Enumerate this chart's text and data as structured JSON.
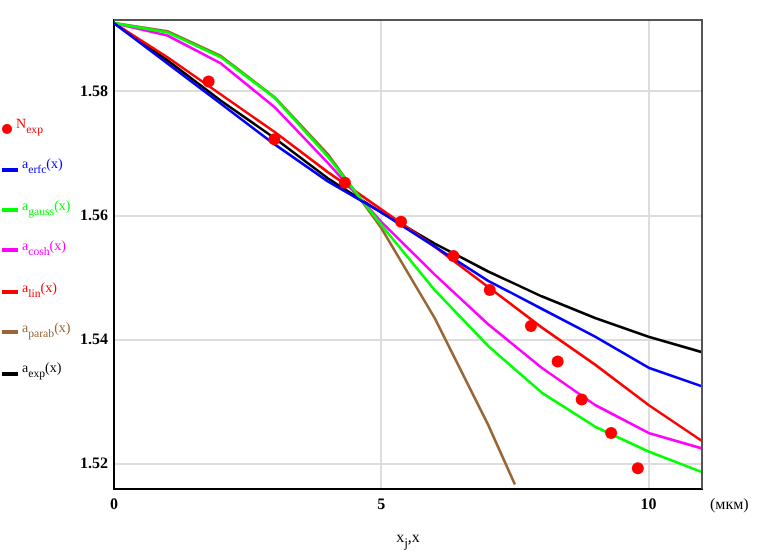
{
  "chart_data": {
    "type": "line",
    "xlabel": "x$_{j}$,x",
    "annotations": [
      "(мкм)"
    ],
    "xlim": [
      0,
      11
    ],
    "ylim": [
      1.516,
      1.5915
    ],
    "xticks": [
      0,
      5,
      10
    ],
    "yticks": [
      1.52,
      1.54,
      1.56,
      1.58
    ],
    "grid": true,
    "legend": "left",
    "line_style": "solid",
    "series": [
      {
        "name": "N$_{exp}$",
        "type": "scatter",
        "marker": "circle",
        "color": "#ff0000",
        "x": [
          1.77,
          3.0,
          4.32,
          5.37,
          6.35,
          7.03,
          7.8,
          8.3,
          8.75,
          9.3,
          9.8
        ],
        "values": [
          1.5816,
          1.5723,
          1.5653,
          1.559,
          1.5535,
          1.548,
          1.5422,
          1.5365,
          1.5304,
          1.525,
          1.5193
        ]
      },
      {
        "name": "a$_{erfc}$(x)",
        "color": "#0000ff",
        "x": [
          0,
          1,
          2,
          3,
          4,
          5,
          6,
          7,
          8,
          9,
          10,
          11
        ],
        "values": [
          1.591,
          1.5845,
          1.578,
          1.5715,
          1.5655,
          1.5605,
          1.555,
          1.5495,
          1.545,
          1.5405,
          1.5355,
          1.5325
        ]
      },
      {
        "name": "a$_{gauss}$(x)",
        "color": "#00ff00",
        "x": [
          0,
          1,
          2,
          3,
          4,
          5,
          6,
          7,
          8,
          9,
          10,
          11
        ],
        "values": [
          1.591,
          1.5895,
          1.5855,
          1.579,
          1.5695,
          1.5585,
          1.548,
          1.539,
          1.5315,
          1.526,
          1.522,
          1.5187
        ]
      },
      {
        "name": "a$_{cosh}$(x)",
        "color": "#ff00ff",
        "x": [
          0,
          1,
          2,
          3,
          4,
          5,
          6,
          7,
          8,
          9,
          10,
          11
        ],
        "values": [
          1.591,
          1.589,
          1.5845,
          1.5775,
          1.5685,
          1.559,
          1.5505,
          1.5425,
          1.5355,
          1.5295,
          1.525,
          1.5225
        ]
      },
      {
        "name": "a$_{lin}$(x)",
        "color": "#ff0000",
        "x": [
          0,
          1,
          2,
          3,
          4,
          5,
          6,
          7,
          8,
          9,
          10,
          11
        ],
        "values": [
          1.591,
          1.5855,
          1.5795,
          1.5735,
          1.567,
          1.561,
          1.555,
          1.5485,
          1.542,
          1.536,
          1.5295,
          1.5237
        ]
      },
      {
        "name": "a$_{parab}$(x)",
        "color": "#996633",
        "x": [
          0,
          1,
          2,
          3,
          4,
          5,
          6,
          7,
          7.5
        ],
        "values": [
          1.591,
          1.5897,
          1.5857,
          1.5791,
          1.5699,
          1.558,
          1.5435,
          1.5263,
          1.5167
        ]
      },
      {
        "name": "a$_{exp}$(x)",
        "color": "#000000",
        "x": [
          0,
          1,
          2,
          3,
          4,
          5,
          6,
          7,
          8,
          9,
          10,
          11
        ],
        "values": [
          1.591,
          1.585,
          1.5785,
          1.5725,
          1.566,
          1.5605,
          1.5555,
          1.551,
          1.547,
          1.5435,
          1.5405,
          1.538
        ]
      }
    ]
  }
}
